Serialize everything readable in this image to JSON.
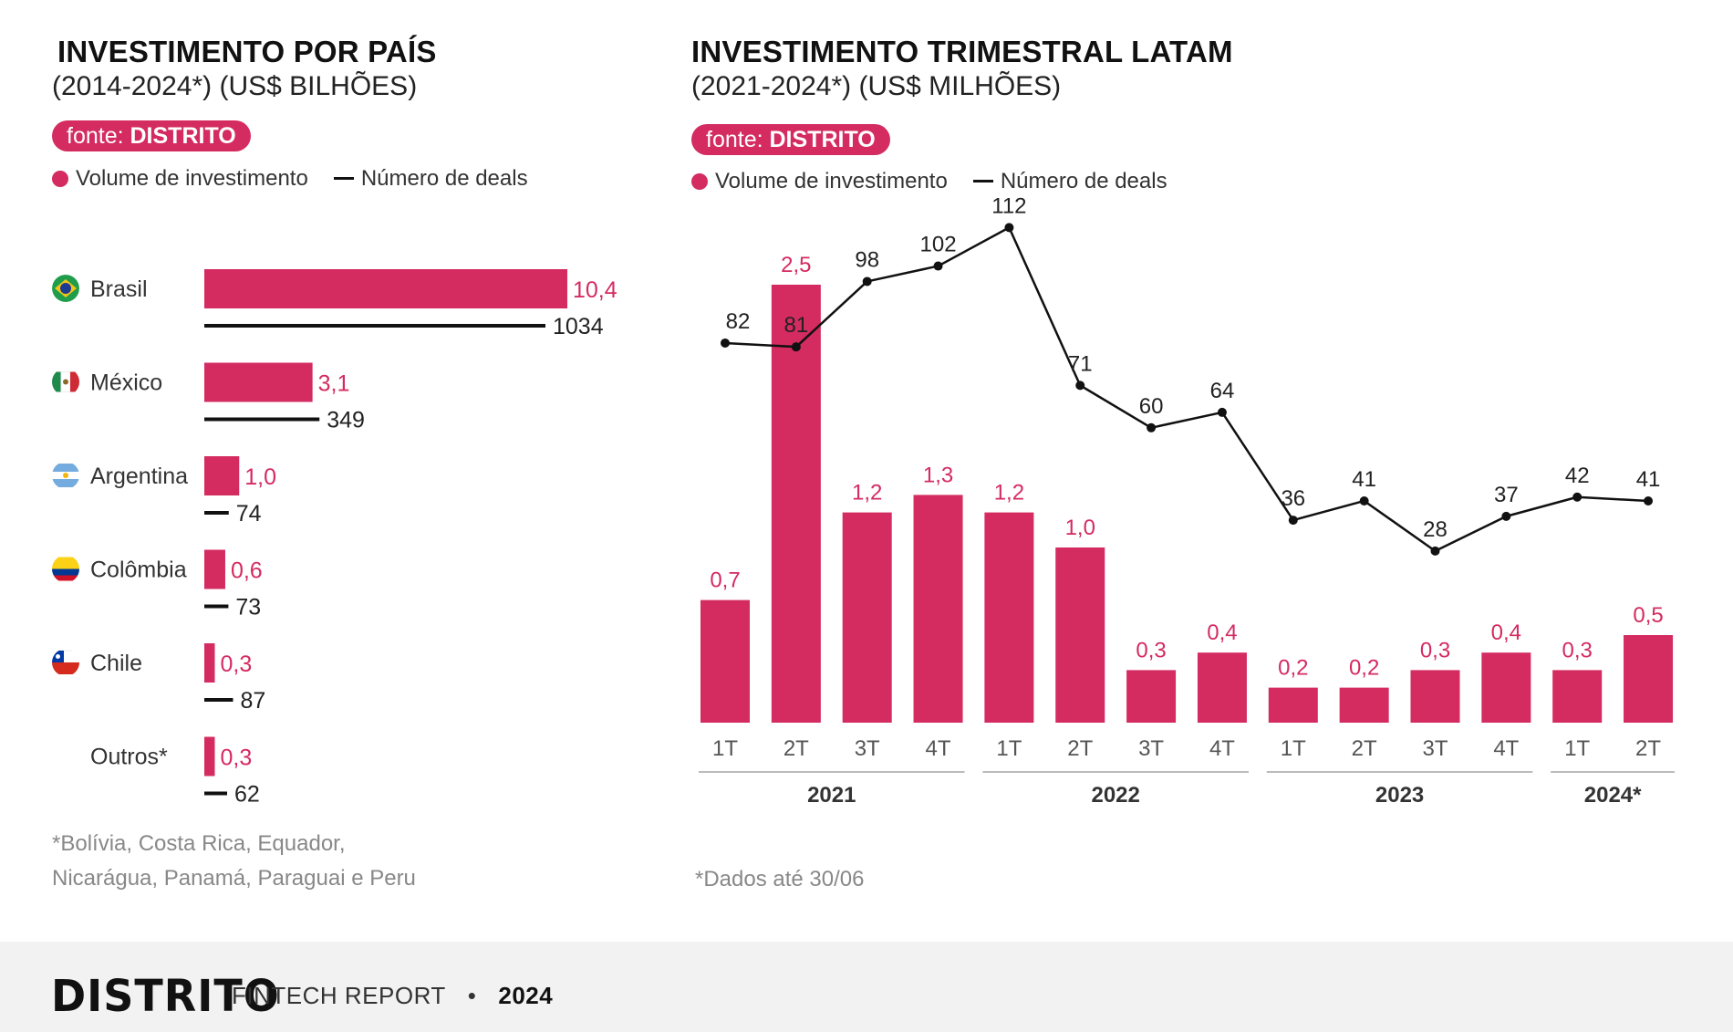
{
  "colors": {
    "accent": "#d42b61",
    "line": "#111111",
    "axis": "#bbbbbb"
  },
  "left": {
    "title": "INVESTIMENTO POR PAÍS",
    "subtitle": "(2014-2024*)  (US$ BILHÕES)",
    "source_prefix": "fonte: ",
    "source_name": "DISTRITO",
    "legend_volume": "Volume de investimento",
    "legend_deals": "Número de deals",
    "footnote_line1": "*Bolívia, Costa Rica, Equador,",
    "footnote_line2": "Nicarágua, Panamá, Paraguai e Peru"
  },
  "right": {
    "title": "INVESTIMENTO TRIMESTRAL LATAM",
    "subtitle": "(2021-2024*)  (US$ MILHÕES)",
    "source_prefix": "fonte: ",
    "source_name": "DISTRITO",
    "legend_volume": "Volume de investimento",
    "legend_deals": "Número de deals",
    "footnote": "*Dados até 30/06"
  },
  "footer": {
    "logo": "DISTRITO",
    "report": "FINTECH REPORT",
    "separator": "•",
    "year": "2024"
  },
  "chart_data": [
    {
      "type": "bar",
      "orientation": "horizontal",
      "categories": [
        {
          "label": "Brasil",
          "flag": "brazil-flag-icon"
        },
        {
          "label": "México",
          "flag": "mexico-flag-icon"
        },
        {
          "label": "Argentina",
          "flag": "argentina-flag-icon"
        },
        {
          "label": "Colômbia",
          "flag": "colombia-flag-icon"
        },
        {
          "label": "Chile",
          "flag": "chile-flag-icon"
        },
        {
          "label": "Outros*",
          "flag": ""
        }
      ],
      "series": [
        {
          "name": "Volume de investimento",
          "values": [
            10.4,
            3.1,
            1.0,
            0.6,
            0.3,
            0.3
          ],
          "labels": [
            "10,4",
            "3,1",
            "1,0",
            "0,6",
            "0,3",
            "0,3"
          ]
        },
        {
          "name": "Número de deals",
          "values": [
            1034,
            349,
            74,
            73,
            87,
            62
          ],
          "labels": [
            "1034",
            "349",
            "74",
            "73",
            "87",
            "62"
          ]
        }
      ]
    },
    {
      "type": "bar",
      "categories": [
        "1T",
        "2T",
        "3T",
        "4T",
        "1T",
        "2T",
        "3T",
        "4T",
        "1T",
        "2T",
        "3T",
        "4T",
        "1T",
        "2T"
      ],
      "years": [
        {
          "label": "2021",
          "span": 4
        },
        {
          "label": "2022",
          "span": 4
        },
        {
          "label": "2023",
          "span": 4
        },
        {
          "label": "2024*",
          "span": 2
        }
      ],
      "series": [
        {
          "name": "Volume de investimento",
          "type": "bar",
          "values": [
            0.7,
            2.5,
            1.2,
            1.3,
            1.2,
            1.0,
            0.3,
            0.4,
            0.2,
            0.2,
            0.3,
            0.4,
            0.3,
            0.5
          ],
          "labels": [
            "0,7",
            "2,5",
            "1,2",
            "1,3",
            "1,2",
            "1,0",
            "0,3",
            "0,4",
            "0,2",
            "0,2",
            "0,3",
            "0,4",
            "0,3",
            "0,5"
          ]
        },
        {
          "name": "Número de deals",
          "type": "line",
          "values": [
            82,
            81,
            98,
            102,
            112,
            71,
            60,
            64,
            36,
            41,
            28,
            37,
            42,
            41
          ],
          "labels": [
            "82",
            "81",
            "98",
            "102",
            "112",
            "71",
            "60",
            "64",
            "36",
            "41",
            "28",
            "37",
            "42",
            "41"
          ]
        }
      ]
    }
  ]
}
